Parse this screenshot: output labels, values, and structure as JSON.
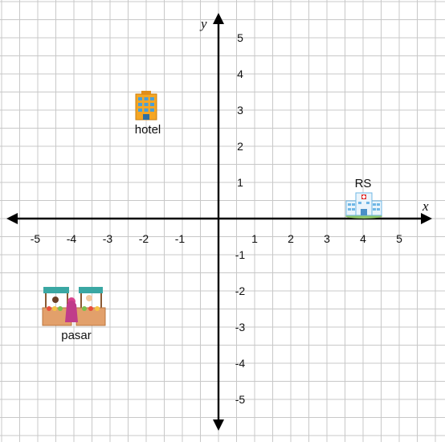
{
  "diagram": {
    "type": "cartesian-plane",
    "axes": {
      "x_label": "x",
      "y_label": "y",
      "x_range": [
        -5,
        5
      ],
      "y_range": [
        -5,
        5
      ],
      "x_ticks": [
        "-5",
        "-4",
        "-3",
        "-2",
        "-1",
        "1",
        "2",
        "3",
        "4",
        "5"
      ],
      "y_ticks": [
        "5",
        "4",
        "3",
        "2",
        "1",
        "-1",
        "-2",
        "-3",
        "-4",
        "-5"
      ],
      "grid": true
    },
    "places": [
      {
        "id": "hotel",
        "label": "hotel",
        "x": -2,
        "y": 3,
        "icon": "hotel-building-icon"
      },
      {
        "id": "rs",
        "label": "RS",
        "x": 4,
        "y": 0.4,
        "icon": "hospital-building-icon"
      },
      {
        "id": "pasar",
        "label": "pasar",
        "x": -4,
        "y": -2.5,
        "icon": "market-stall-icon"
      }
    ],
    "colors": {
      "grid": "#c8c8c8",
      "axis": "#000000",
      "hotel_orange": "#f5a623",
      "hotel_blue": "#4a9fd8",
      "hospital_blue": "#6fb7e6",
      "hospital_wall": "#eaf4fb",
      "market_roof": "#3aa7a3",
      "market_stall": "#e2a06b"
    }
  }
}
